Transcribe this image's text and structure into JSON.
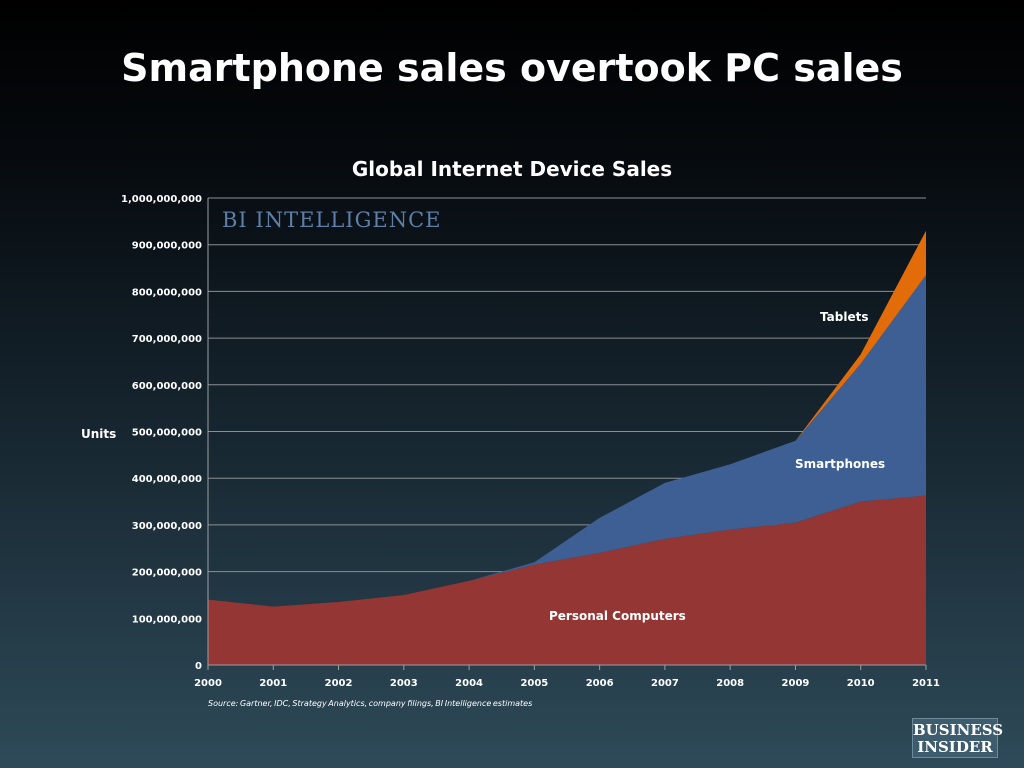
{
  "slide": {
    "title": "Smartphone sales overtook PC sales",
    "source": "Source: Gartner, IDC, Strategy Analytics, company filings, BI Intelligence estimates ",
    "brand_badge": "BI INTELLIGENCE",
    "publisher_logo": [
      "BUSINESS",
      "INSIDER"
    ]
  },
  "chart_data": {
    "type": "area",
    "stacked": true,
    "title": "Global Internet Device Sales",
    "ylabel": "Units",
    "xlabel": "",
    "categories": [
      "2000",
      "2001",
      "2002",
      "2003",
      "2004",
      "2005",
      "2006",
      "2007",
      "2008",
      "2009",
      "2010",
      "2011"
    ],
    "ylim": [
      0,
      1000000000
    ],
    "yticks": [
      0,
      100000000,
      200000000,
      300000000,
      400000000,
      500000000,
      600000000,
      700000000,
      800000000,
      900000000,
      1000000000
    ],
    "ytick_labels": [
      "0",
      "100,000,000",
      "200,000,000",
      "300,000,000",
      "400,000,000",
      "500,000,000",
      "600,000,000",
      "700,000,000",
      "800,000,000",
      "900,000,000",
      "1,000,000,000"
    ],
    "grid": true,
    "series": [
      {
        "name": "Personal Computers",
        "color": "#943634",
        "values": [
          140000000,
          125000000,
          135000000,
          150000000,
          180000000,
          215000000,
          240000000,
          270000000,
          290000000,
          305000000,
          350000000,
          363000000
        ]
      },
      {
        "name": "Smartphones",
        "color": "#3d5f93",
        "values": [
          0,
          0,
          0,
          0,
          0,
          5000000,
          75000000,
          120000000,
          140000000,
          175000000,
          295000000,
          472000000
        ]
      },
      {
        "name": "Tablets",
        "color": "#e36c0a",
        "values": [
          0,
          0,
          0,
          0,
          0,
          0,
          0,
          0,
          0,
          0,
          20000000,
          95000000
        ]
      }
    ]
  }
}
